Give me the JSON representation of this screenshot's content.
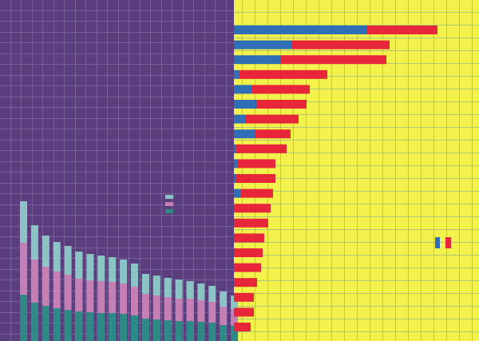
{
  "chart_data": [
    {
      "type": "stacked-bar",
      "categories": [
        null,
        null,
        null,
        null,
        null,
        null,
        null,
        null,
        null,
        null,
        null,
        null,
        null,
        null,
        null,
        null,
        null,
        null,
        null,
        null
      ],
      "series": [
        {
          "color": "#2e8a86",
          "values": [
            58,
            48,
            44,
            41,
            39,
            37,
            36,
            35,
            35,
            34,
            32,
            28,
            27,
            26,
            25,
            25,
            24,
            23,
            20,
            19
          ]
        },
        {
          "color": "#c47fb4",
          "values": [
            65,
            54,
            49,
            46,
            44,
            41,
            40,
            40,
            39,
            38,
            36,
            31,
            30,
            29,
            28,
            28,
            27,
            26,
            23,
            21
          ]
        },
        {
          "color": "#8cc4c6",
          "values": [
            52,
            43,
            39,
            37,
            36,
            34,
            33,
            32,
            31,
            30,
            29,
            25,
            25,
            24,
            24,
            22,
            21,
            20,
            19,
            17
          ]
        }
      ],
      "ylim": [
        0,
        200
      ]
    },
    {
      "type": "stacked-barh",
      "categories": [
        null,
        null,
        null,
        null,
        null,
        null,
        null,
        null,
        null,
        null,
        null,
        null,
        null,
        null,
        null,
        null,
        null,
        null,
        null,
        null,
        null
      ],
      "series": [
        {
          "color": "#2f6fb8",
          "values": [
            167,
            72,
            59,
            7,
            23,
            29,
            14,
            26,
            3,
            5,
            3,
            9,
            0,
            0,
            0,
            0,
            0,
            0,
            0,
            0,
            0
          ]
        },
        {
          "color": "#e8263a",
          "values": [
            88,
            123,
            132,
            110,
            72,
            62,
            67,
            45,
            63,
            47,
            49,
            40,
            46,
            43,
            38,
            36,
            34,
            29,
            25,
            25,
            21
          ]
        }
      ],
      "xlim": [
        0,
        260
      ]
    }
  ]
}
